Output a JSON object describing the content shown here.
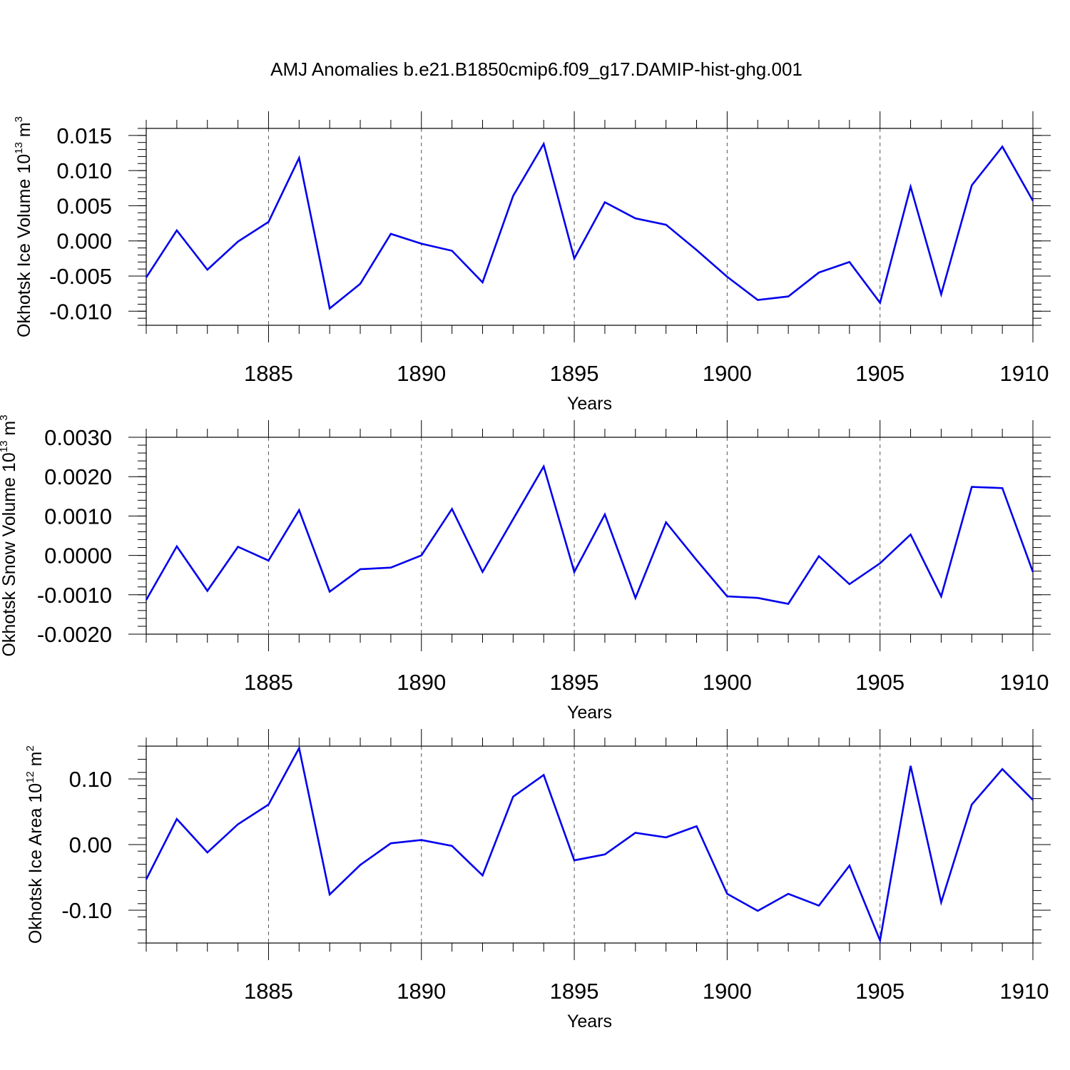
{
  "chart_data": {
    "type": "line",
    "title": "AMJ Anomalies b.e21.B1850cmip6.f09_g17.DAMIP-hist-ghg.001",
    "line_color": "#0000ee",
    "panels": [
      {
        "ylabel": "Okhotsk Ice Volume 10",
        "ylabel_sup": "13",
        "ylabel_unit": " m",
        "ylabel_unit_sup": "3",
        "xlabel": "Years",
        "xlim": [
          1881,
          1910
        ],
        "ylim": [
          -0.012,
          0.016
        ],
        "yticks": [
          -0.01,
          -0.005,
          0.0,
          0.005,
          0.01,
          0.015
        ],
        "ytick_labels": [
          "-0.010",
          "-0.005",
          "0.000",
          "0.005",
          "0.010",
          "0.015"
        ],
        "yminor_step": 0.001,
        "xticks": [
          1885,
          1890,
          1895,
          1900,
          1905,
          1910
        ],
        "x": [
          1881,
          1882,
          1883,
          1884,
          1885,
          1886,
          1887,
          1888,
          1889,
          1890,
          1891,
          1892,
          1893,
          1894,
          1895,
          1896,
          1897,
          1898,
          1899,
          1900,
          1901,
          1902,
          1903,
          1904,
          1905,
          1906,
          1907,
          1908,
          1909,
          1910
        ],
        "series": [
          {
            "name": "Okhotsk Ice Volume",
            "values": [
              -0.0052,
              0.0015,
              -0.0041,
              -0.0001,
              0.0027,
              0.0118,
              -0.0096,
              -0.0061,
              0.001,
              -0.0004,
              -0.0014,
              -0.0059,
              0.0064,
              0.0138,
              -0.0025,
              0.0055,
              0.0032,
              0.0023,
              -0.0013,
              -0.0051,
              -0.0084,
              -0.0079,
              -0.0045,
              -0.003,
              -0.0088,
              0.0077,
              -0.0076,
              0.0079,
              0.0134,
              0.0057
            ]
          }
        ]
      },
      {
        "ylabel": "Okhotsk Snow Volume 10",
        "ylabel_sup": "13",
        "ylabel_unit": " m",
        "ylabel_unit_sup": "3",
        "xlabel": "Years",
        "xlim": [
          1881,
          1910
        ],
        "ylim": [
          -0.002,
          0.003
        ],
        "yticks": [
          -0.002,
          -0.001,
          0.0,
          0.001,
          0.002,
          0.003
        ],
        "ytick_labels": [
          "-0.0020",
          "-0.0010",
          "0.0000",
          "0.0010",
          "0.0020",
          "0.0030"
        ],
        "yminor_step": 0.0002,
        "xticks": [
          1885,
          1890,
          1895,
          1900,
          1905,
          1910
        ],
        "x": [
          1881,
          1882,
          1883,
          1884,
          1885,
          1886,
          1887,
          1888,
          1889,
          1890,
          1891,
          1892,
          1893,
          1894,
          1895,
          1896,
          1897,
          1898,
          1899,
          1900,
          1901,
          1902,
          1903,
          1904,
          1905,
          1906,
          1907,
          1908,
          1909,
          1910
        ],
        "series": [
          {
            "name": "Okhotsk Snow Volume",
            "values": [
              -0.00113,
              0.00023,
              -0.0009,
              0.00022,
              -0.00013,
              0.00115,
              -0.00092,
              -0.00035,
              -0.00031,
              0.0,
              0.00118,
              -0.00042,
              0.00092,
              0.00226,
              -0.00042,
              0.00104,
              -0.00108,
              0.00084,
              -0.00012,
              -0.00104,
              -0.00108,
              -0.00123,
              -2e-05,
              -0.00073,
              -0.0002,
              0.00053,
              -0.00104,
              0.00174,
              0.00171,
              -0.00042
            ]
          }
        ]
      },
      {
        "ylabel": "Okhotsk Ice Area 10",
        "ylabel_sup": "12",
        "ylabel_unit": " m",
        "ylabel_unit_sup": "2",
        "xlabel": "Years",
        "xlim": [
          1881,
          1910
        ],
        "ylim": [
          -0.15,
          0.15
        ],
        "yticks": [
          -0.1,
          0.0,
          0.1
        ],
        "ytick_labels": [
          "-0.10",
          "0.00",
          "0.10"
        ],
        "yminor_step": 0.02,
        "xticks": [
          1885,
          1890,
          1895,
          1900,
          1905,
          1910
        ],
        "x": [
          1881,
          1882,
          1883,
          1884,
          1885,
          1886,
          1887,
          1888,
          1889,
          1890,
          1891,
          1892,
          1893,
          1894,
          1895,
          1896,
          1897,
          1898,
          1899,
          1900,
          1901,
          1902,
          1903,
          1904,
          1905,
          1906,
          1907,
          1908,
          1909,
          1910
        ],
        "series": [
          {
            "name": "Okhotsk Ice Area",
            "values": [
              -0.053,
              0.039,
              -0.012,
              0.031,
              0.061,
              0.147,
              -0.076,
              -0.031,
              0.002,
              0.007,
              -0.002,
              -0.047,
              0.073,
              0.106,
              -0.024,
              -0.015,
              0.018,
              0.011,
              0.028,
              -0.075,
              -0.101,
              -0.075,
              -0.093,
              -0.032,
              -0.146,
              0.12,
              -0.088,
              0.061,
              0.115,
              0.068
            ]
          }
        ]
      }
    ]
  }
}
